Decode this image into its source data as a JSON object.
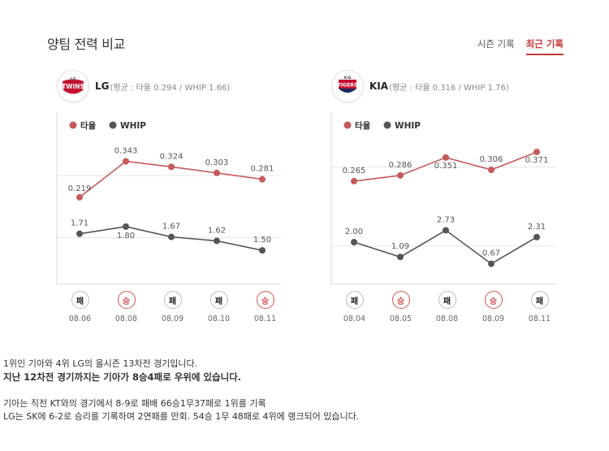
{
  "header": {
    "title": "양팀 전력 비교",
    "tabs": [
      {
        "label": "시즌 기록",
        "active": false
      },
      {
        "label": "최근 기록",
        "active": true
      }
    ]
  },
  "colors": {
    "avg_line": "#c55a5a",
    "whip_line": "#555555",
    "win": "#d25353",
    "guide": "#e6e6e6"
  },
  "legend": {
    "avg": "타율",
    "whip": "WHIP"
  },
  "teams": [
    {
      "name": "LG",
      "avg_text": "(평균 : 타율 0.294 / WHIP 1.66)",
      "logo_icon": "lg-twins-logo-icon",
      "logo_text": "TWINS",
      "logo_sub": "LG",
      "chart_data": {
        "type": "line",
        "x": [
          "08.06",
          "08.08",
          "08.09",
          "08.10",
          "08.11"
        ],
        "series": [
          {
            "name": "타율",
            "values": [
              0.219,
              0.343,
              0.324,
              0.303,
              0.281
            ],
            "labels": [
              "0.219",
              "0.343",
              "0.324",
              "0.303",
              "0.281"
            ],
            "average": 0.294
          },
          {
            "name": "WHIP",
            "values": [
              1.71,
              1.8,
              1.67,
              1.62,
              1.5
            ],
            "labels": [
              "1.71",
              "1.80",
              "1.67",
              "1.62",
              "1.50"
            ],
            "average": 1.66
          }
        ]
      },
      "games": [
        {
          "result": "패",
          "date": "08.06",
          "win": false
        },
        {
          "result": "승",
          "date": "08.08",
          "win": true
        },
        {
          "result": "패",
          "date": "08.09",
          "win": false
        },
        {
          "result": "패",
          "date": "08.10",
          "win": false
        },
        {
          "result": "승",
          "date": "08.11",
          "win": true
        }
      ]
    },
    {
      "name": "KIA",
      "avg_text": "(평균 : 타율 0.316 / WHIP 1.76)",
      "logo_icon": "kia-tigers-logo-icon",
      "logo_text": "TIGERS",
      "logo_sub": "KIA",
      "chart_data": {
        "type": "line",
        "x": [
          "08.04",
          "08.05",
          "08.08",
          "08.09",
          "08.11"
        ],
        "series": [
          {
            "name": "타율",
            "values": [
              0.265,
              0.286,
              0.351,
              0.306,
              0.371
            ],
            "labels": [
              "0.265",
              "0.286",
              "0.351",
              "0.306",
              "0.371"
            ],
            "average": 0.316
          },
          {
            "name": "WHIP",
            "values": [
              2.0,
              1.09,
              2.73,
              0.67,
              2.31
            ],
            "labels": [
              "2.00",
              "1.09",
              "2.73",
              "0.67",
              "2.31"
            ],
            "average": 1.76
          }
        ]
      },
      "games": [
        {
          "result": "패",
          "date": "08.04",
          "win": false
        },
        {
          "result": "승",
          "date": "08.05",
          "win": true
        },
        {
          "result": "패",
          "date": "08.08",
          "win": false
        },
        {
          "result": "승",
          "date": "08.09",
          "win": true
        },
        {
          "result": "패",
          "date": "08.11",
          "win": false
        }
      ]
    }
  ],
  "description": {
    "line1": "1위인 기아와 4위 LG의 올시즌 13차전 경기입니다.",
    "line2": "지난 12차전 경기까지는 기아가 8승4패로 우위에 있습니다.",
    "line3": "기아는 직전 KT와의 경기에서 8-9로 패배 66승1무37패로 1위를 기록",
    "line4": "LG는 SK에 6-2로 승리를 기록하며 2연패를 만회. 54승 1무 48패로 4위에 랭크되어 있습니다."
  }
}
